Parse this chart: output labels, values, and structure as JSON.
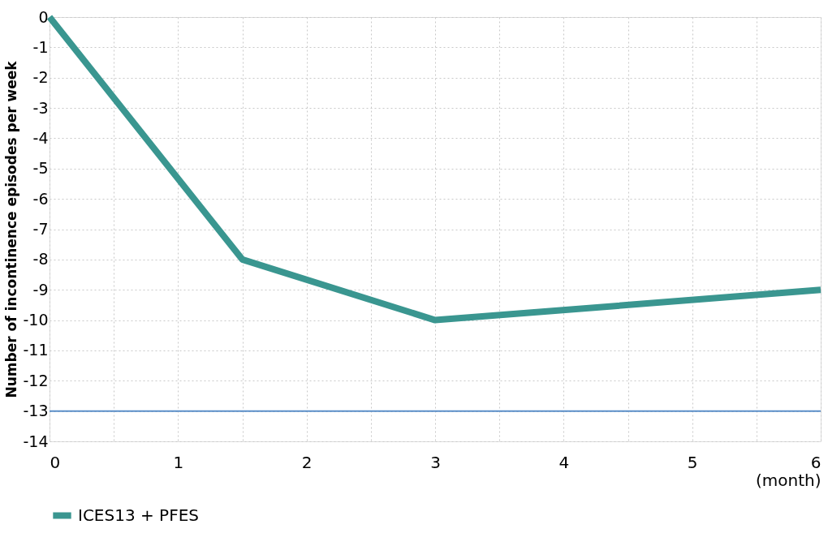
{
  "chart_data": {
    "type": "line",
    "xlabel": "(month)",
    "ylabel": "Number of incontinence episodes per week",
    "x": [
      0,
      1.5,
      3,
      6
    ],
    "series": [
      {
        "name": "ICES13 + PFES",
        "color": "#3a9690",
        "values": [
          0,
          -8,
          -10,
          -9
        ]
      }
    ],
    "xlim": [
      0,
      6
    ],
    "xticks": [
      0,
      {
        "value": 0.5,
        "label": null
      },
      1,
      {
        "value": 1.5,
        "label": null
      },
      2,
      {
        "value": 2.5,
        "label": null
      },
      3,
      {
        "value": 3.5,
        "label": null
      },
      4,
      {
        "value": 4.5,
        "label": null
      },
      5,
      {
        "value": 5.5,
        "label": null
      },
      6
    ],
    "ylim": [
      -14,
      0
    ],
    "yticks": [
      0,
      -1,
      -2,
      -3,
      -4,
      -5,
      -6,
      -7,
      -8,
      -9,
      -10,
      -11,
      -12,
      -13,
      -14
    ],
    "ref_lines": [
      {
        "axis": "y",
        "value": -13,
        "color": "#5b8fc9"
      }
    ],
    "grid": true,
    "legend": "bottom",
    "marker": "none",
    "line_style": "solid"
  }
}
